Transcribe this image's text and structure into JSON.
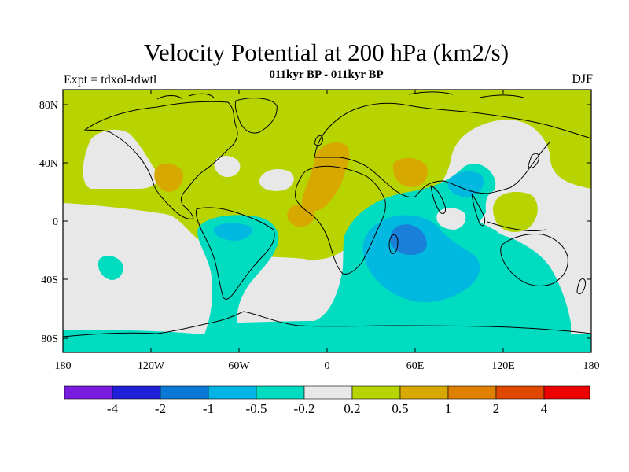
{
  "title": "Velocity Potential at 200 hPa (km2/s)",
  "subtitle": "011kyr BP - 011kyr BP",
  "left_label": "Expt = tdxol-tdwtl",
  "right_label": "DJF",
  "colors": {
    "land_outline": "#000000",
    "ocean_zero": "#e8e8e8",
    "pos_weak": "#b8d400",
    "pos_mod": "#d6a800",
    "neg_weak": "#00dcc0",
    "neg_mod": "#00b8e0",
    "neg_strong": "#1a7fd8"
  },
  "map": {
    "x_ticks": [
      "180",
      "120W",
      "60W",
      "0",
      "60E",
      "120E",
      "180"
    ],
    "y_ticks": [
      "80N",
      "40N",
      "0",
      "40S",
      "80S"
    ]
  },
  "colorbar": {
    "colors": [
      "#7a1be0",
      "#2020d8",
      "#0b78d8",
      "#00b4e6",
      "#00dcc0",
      "#e8e8e8",
      "#b8d400",
      "#d6a800",
      "#e08000",
      "#e04800",
      "#ee0000"
    ],
    "labels": [
      "-4",
      "-2",
      "-1",
      "-0.5",
      "-0.2",
      "0.2",
      "0.5",
      "1",
      "2",
      "4"
    ]
  }
}
